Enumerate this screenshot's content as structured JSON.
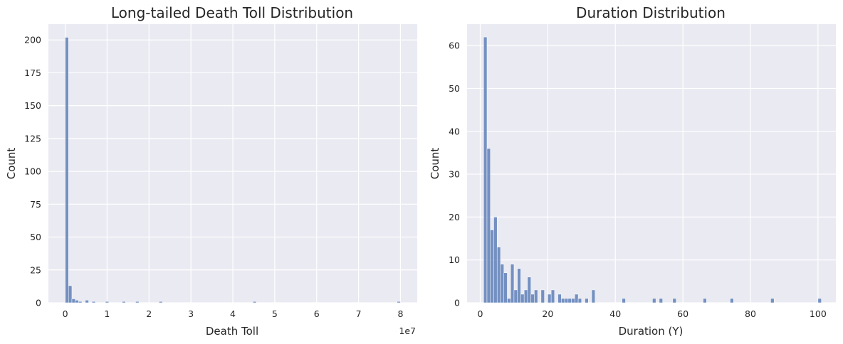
{
  "chart_data": [
    {
      "type": "bar",
      "title": "Long-tailed Death Toll Distribution",
      "xlabel": "Death Toll",
      "ylabel": "Count",
      "x_offset_text": "1e7",
      "xlim": [
        -0.4,
        8.4
      ],
      "ylim": [
        0,
        212
      ],
      "xticks": [
        0,
        1,
        2,
        3,
        4,
        5,
        6,
        7,
        8
      ],
      "xtick_labels": [
        "0",
        "1",
        "2",
        "3",
        "4",
        "5",
        "6",
        "7",
        "8"
      ],
      "yticks": [
        0,
        25,
        50,
        75,
        100,
        125,
        150,
        175,
        200
      ],
      "ytick_labels": [
        "0",
        "25",
        "50",
        "75",
        "100",
        "125",
        "150",
        "175",
        "200"
      ],
      "grid": true,
      "bin_width": 0.08,
      "bins": [
        {
          "x": 0.0,
          "count": 202
        },
        {
          "x": 0.08,
          "count": 13
        },
        {
          "x": 0.16,
          "count": 3
        },
        {
          "x": 0.24,
          "count": 2
        },
        {
          "x": 0.32,
          "count": 1
        },
        {
          "x": 0.48,
          "count": 2
        },
        {
          "x": 0.64,
          "count": 1
        },
        {
          "x": 0.96,
          "count": 1
        },
        {
          "x": 1.36,
          "count": 1
        },
        {
          "x": 1.68,
          "count": 1
        },
        {
          "x": 2.24,
          "count": 1
        },
        {
          "x": 4.48,
          "count": 1
        },
        {
          "x": 7.92,
          "count": 1
        }
      ]
    },
    {
      "type": "bar",
      "title": "Duration Distribution",
      "xlabel": "Duration (Y)",
      "ylabel": "Count",
      "xlim": [
        -3.9,
        105.3
      ],
      "ylim": [
        0,
        65
      ],
      "xticks": [
        0,
        20,
        40,
        60,
        80,
        100
      ],
      "xtick_labels": [
        "0",
        "20",
        "40",
        "60",
        "80",
        "100"
      ],
      "yticks": [
        0,
        10,
        20,
        30,
        40,
        50,
        60
      ],
      "ytick_labels": [
        "0",
        "10",
        "20",
        "30",
        "40",
        "50",
        "60"
      ],
      "grid": true,
      "bin_width": 1,
      "bins": [
        {
          "x": 1,
          "count": 62
        },
        {
          "x": 2,
          "count": 36
        },
        {
          "x": 3,
          "count": 17
        },
        {
          "x": 4,
          "count": 20
        },
        {
          "x": 5,
          "count": 13
        },
        {
          "x": 6,
          "count": 9
        },
        {
          "x": 7,
          "count": 7
        },
        {
          "x": 8,
          "count": 1
        },
        {
          "x": 9,
          "count": 9
        },
        {
          "x": 10,
          "count": 3
        },
        {
          "x": 11,
          "count": 8
        },
        {
          "x": 12,
          "count": 2
        },
        {
          "x": 13,
          "count": 3
        },
        {
          "x": 14,
          "count": 6
        },
        {
          "x": 15,
          "count": 2
        },
        {
          "x": 16,
          "count": 3
        },
        {
          "x": 18,
          "count": 3
        },
        {
          "x": 20,
          "count": 2
        },
        {
          "x": 21,
          "count": 3
        },
        {
          "x": 23,
          "count": 2
        },
        {
          "x": 24,
          "count": 1
        },
        {
          "x": 25,
          "count": 1
        },
        {
          "x": 26,
          "count": 1
        },
        {
          "x": 27,
          "count": 1
        },
        {
          "x": 28,
          "count": 2
        },
        {
          "x": 29,
          "count": 1
        },
        {
          "x": 31,
          "count": 1
        },
        {
          "x": 33,
          "count": 3
        },
        {
          "x": 42,
          "count": 1
        },
        {
          "x": 51,
          "count": 1
        },
        {
          "x": 53,
          "count": 1
        },
        {
          "x": 57,
          "count": 1
        },
        {
          "x": 66,
          "count": 1
        },
        {
          "x": 74,
          "count": 1
        },
        {
          "x": 86,
          "count": 1
        },
        {
          "x": 100,
          "count": 1
        }
      ]
    }
  ]
}
